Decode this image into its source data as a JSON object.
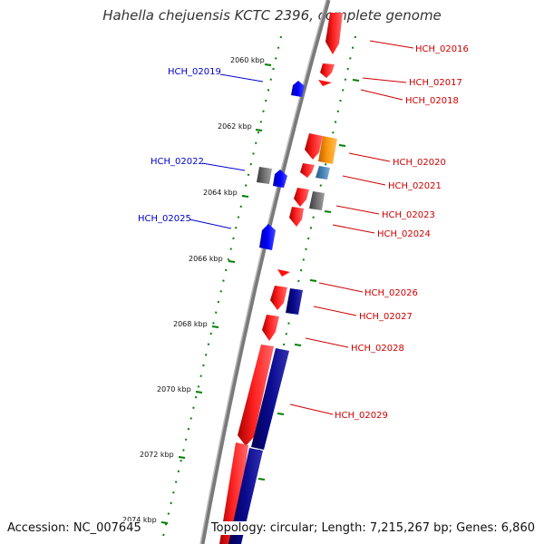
{
  "title": "Hahella chejuensis KCTC 2396, complete genome",
  "footer": {
    "accession": "Accession: NC_007645",
    "topology": "Topology: circular; Length: 7,215,267 bp; Genes: 6,860"
  },
  "colors": {
    "backbone": "#888888",
    "forward_gene": "#ff0000",
    "reverse_gene": "#000080",
    "blue_gene": "#0000ff",
    "orange_gene": "#ff8c00",
    "steel_gene": "#4682b4",
    "gray_gene": "#666666",
    "tick": "#008000",
    "label_red": "#cc0000",
    "label_blue": "#0000cc"
  },
  "ruler_ticks": [
    {
      "label": "2060 kbp"
    },
    {
      "label": "2062 kbp"
    },
    {
      "label": "2064 kbp"
    },
    {
      "label": "2066 kbp"
    },
    {
      "label": "2068 kbp"
    },
    {
      "label": "2070 kbp"
    },
    {
      "label": "2072 kbp"
    },
    {
      "label": "2074 kbp"
    }
  ],
  "gene_labels": [
    {
      "name": "HCH_02016",
      "color": "red"
    },
    {
      "name": "HCH_02017",
      "color": "red"
    },
    {
      "name": "HCH_02018",
      "color": "red"
    },
    {
      "name": "HCH_02019",
      "color": "blue"
    },
    {
      "name": "HCH_02020",
      "color": "red"
    },
    {
      "name": "HCH_02021",
      "color": "red"
    },
    {
      "name": "HCH_02022",
      "color": "blue"
    },
    {
      "name": "HCH_02023",
      "color": "red"
    },
    {
      "name": "HCH_02024",
      "color": "red"
    },
    {
      "name": "HCH_02025",
      "color": "blue"
    },
    {
      "name": "HCH_02026",
      "color": "red"
    },
    {
      "name": "HCH_02027",
      "color": "red"
    },
    {
      "name": "HCH_02028",
      "color": "red"
    },
    {
      "name": "HCH_02029",
      "color": "red"
    }
  ]
}
